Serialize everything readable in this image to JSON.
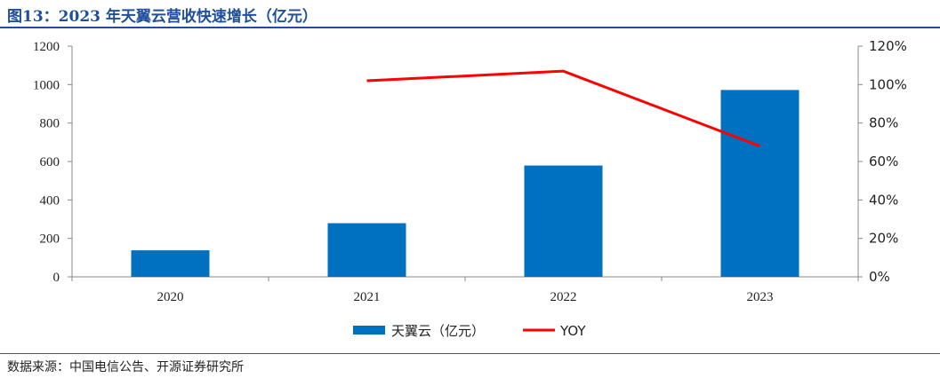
{
  "title": "图13：2023 年天翼云营收快速增长（亿元）",
  "source": "数据来源：中国电信公告、开源证券研究所",
  "chart_data": {
    "type": "bar",
    "categories": [
      "2020",
      "2021",
      "2022",
      "2023"
    ],
    "series": [
      {
        "name": "天翼云（亿元）",
        "type": "bar",
        "axis": "left",
        "color": "#0070c0",
        "values": [
          138,
          279,
          579,
          972
        ]
      },
      {
        "name": "YOY",
        "type": "line",
        "axis": "right",
        "color": "#ff0000",
        "values": [
          null,
          102,
          107,
          68
        ]
      }
    ],
    "ylim_left": [
      0,
      1200
    ],
    "yticks_left": [
      "0",
      "200",
      "400",
      "600",
      "800",
      "1000",
      "1200"
    ],
    "ylim_right": [
      0,
      120
    ],
    "yticks_right": [
      "0%",
      "20%",
      "40%",
      "60%",
      "80%",
      "100%",
      "120%"
    ],
    "grid": false,
    "legend": "bottom-center"
  }
}
